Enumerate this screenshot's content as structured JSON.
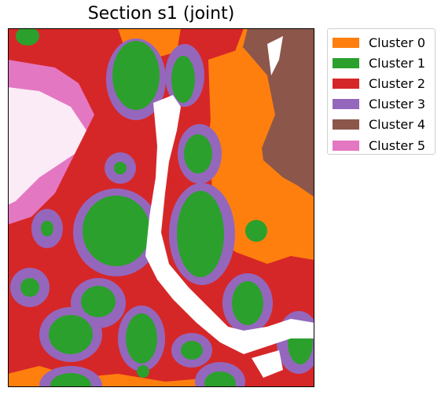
{
  "chart_data": {
    "type": "heatmap",
    "title": "Section s1 (joint)",
    "xlabel": "",
    "ylabel": "",
    "legend_position": "outside-top-right",
    "categories": [
      "Cluster 0",
      "Cluster 1",
      "Cluster 2",
      "Cluster 3",
      "Cluster 4",
      "Cluster 5"
    ],
    "colors": {
      "Cluster 0": "#ff7f0e",
      "Cluster 1": "#2ca02c",
      "Cluster 2": "#d62728",
      "Cluster 3": "#9467bd",
      "Cluster 4": "#8c564b",
      "Cluster 5": "#e377c2"
    },
    "background": "#ffffff",
    "axes": "hidden"
  }
}
